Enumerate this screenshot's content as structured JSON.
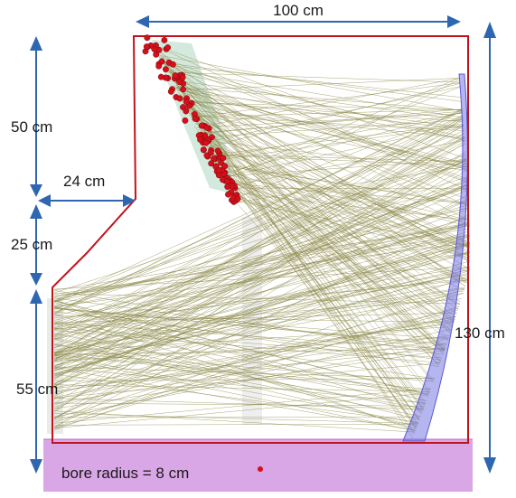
{
  "labels": {
    "top_width": "100 cm",
    "upper_height": "50 cm",
    "step_width": "24 cm",
    "middle_height": "25 cm",
    "lower_height": "55 cm",
    "total_height": "130 cm",
    "bore": "bore radius = 8 cm"
  },
  "colors": {
    "outline": "#c0141c",
    "rays": "#8c8a4a",
    "arrows": "#2e66b0",
    "mirror": "#6b6be0",
    "bore_band": "#cc88dd",
    "sensors": "#d4101a",
    "sensor_panel": "#9fcfb4"
  }
}
